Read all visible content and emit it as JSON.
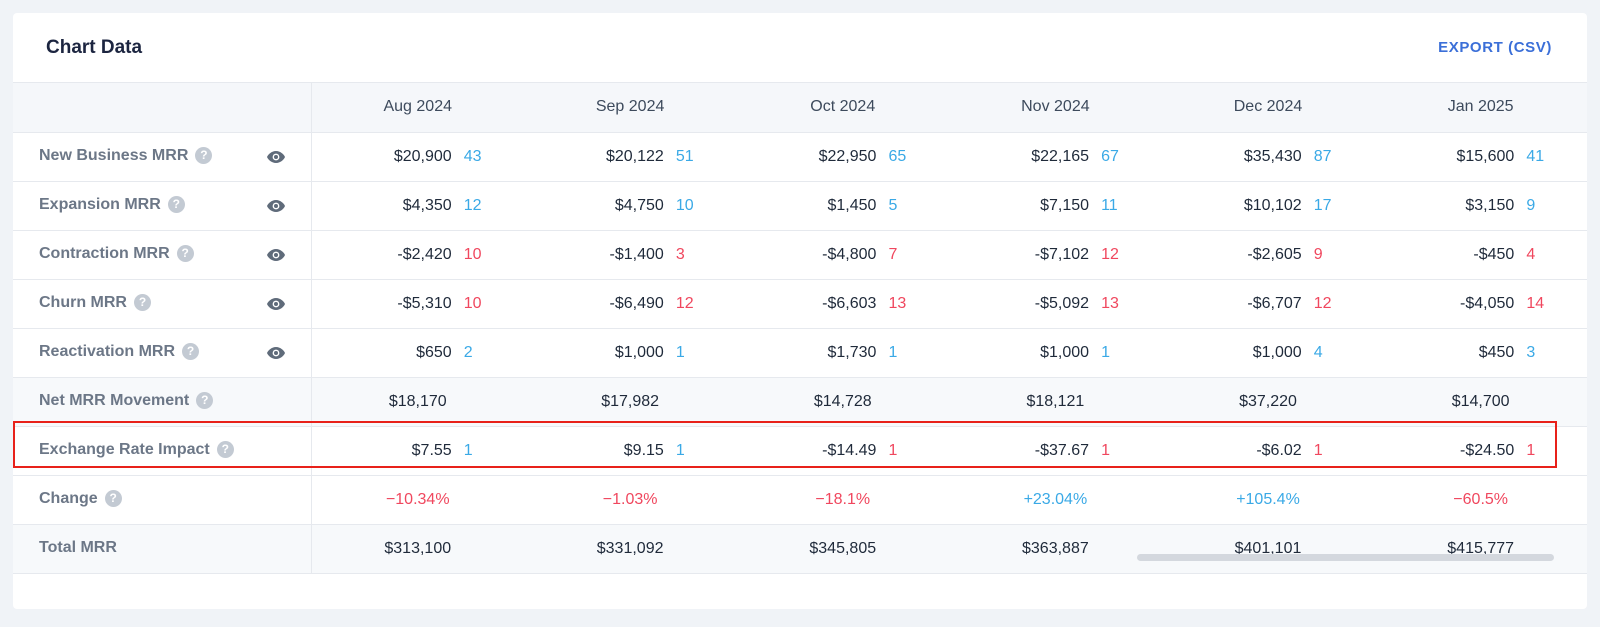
{
  "card": {
    "title": "Chart Data",
    "export_label": "EXPORT (CSV)"
  },
  "columns": [
    "Aug 2024",
    "Sep 2024",
    "Oct 2024",
    "Nov 2024",
    "Dec 2024",
    "Jan 2025"
  ],
  "rows": [
    {
      "label": "New Business MRR",
      "help_icon": "?",
      "has_eye": true,
      "cells": [
        {
          "amount": "$20,900",
          "count": "43",
          "tone": "pos"
        },
        {
          "amount": "$20,122",
          "count": "51",
          "tone": "pos"
        },
        {
          "amount": "$22,950",
          "count": "65",
          "tone": "pos"
        },
        {
          "amount": "$22,165",
          "count": "67",
          "tone": "pos"
        },
        {
          "amount": "$35,430",
          "count": "87",
          "tone": "pos"
        },
        {
          "amount": "$15,600",
          "count": "41",
          "tone": "pos"
        }
      ]
    },
    {
      "label": "Expansion MRR",
      "help_icon": "?",
      "has_eye": true,
      "cells": [
        {
          "amount": "$4,350",
          "count": "12",
          "tone": "pos"
        },
        {
          "amount": "$4,750",
          "count": "10",
          "tone": "pos"
        },
        {
          "amount": "$1,450",
          "count": "5",
          "tone": "pos"
        },
        {
          "amount": "$7,150",
          "count": "11",
          "tone": "pos"
        },
        {
          "amount": "$10,102",
          "count": "17",
          "tone": "pos"
        },
        {
          "amount": "$3,150",
          "count": "9",
          "tone": "pos"
        }
      ]
    },
    {
      "label": "Contraction MRR",
      "help_icon": "?",
      "has_eye": true,
      "cells": [
        {
          "amount": "-$2,420",
          "count": "10",
          "tone": "neg"
        },
        {
          "amount": "-$1,400",
          "count": "3",
          "tone": "neg"
        },
        {
          "amount": "-$4,800",
          "count": "7",
          "tone": "neg"
        },
        {
          "amount": "-$7,102",
          "count": "12",
          "tone": "neg"
        },
        {
          "amount": "-$2,605",
          "count": "9",
          "tone": "neg"
        },
        {
          "amount": "-$450",
          "count": "4",
          "tone": "neg"
        }
      ]
    },
    {
      "label": "Churn MRR",
      "help_icon": "?",
      "has_eye": true,
      "cells": [
        {
          "amount": "-$5,310",
          "count": "10",
          "tone": "neg"
        },
        {
          "amount": "-$6,490",
          "count": "12",
          "tone": "neg"
        },
        {
          "amount": "-$6,603",
          "count": "13",
          "tone": "neg"
        },
        {
          "amount": "-$5,092",
          "count": "13",
          "tone": "neg"
        },
        {
          "amount": "-$6,707",
          "count": "12",
          "tone": "neg"
        },
        {
          "amount": "-$4,050",
          "count": "14",
          "tone": "neg"
        }
      ]
    },
    {
      "label": "Reactivation MRR",
      "help_icon": "?",
      "has_eye": true,
      "cells": [
        {
          "amount": "$650",
          "count": "2",
          "tone": "pos"
        },
        {
          "amount": "$1,000",
          "count": "1",
          "tone": "pos"
        },
        {
          "amount": "$1,730",
          "count": "1",
          "tone": "pos"
        },
        {
          "amount": "$1,000",
          "count": "1",
          "tone": "pos"
        },
        {
          "amount": "$1,000",
          "count": "4",
          "tone": "pos"
        },
        {
          "amount": "$450",
          "count": "3",
          "tone": "pos"
        }
      ]
    }
  ],
  "net_row": {
    "label": "Net MRR Movement",
    "help_icon": "?",
    "values": [
      "$18,170",
      "$17,982",
      "$14,728",
      "$18,121",
      "$37,220",
      "$14,700"
    ]
  },
  "fx_row": {
    "label": "Exchange Rate Impact",
    "help_icon": "?",
    "cells": [
      {
        "amount": "$7.55",
        "count": "1",
        "tone": "pos"
      },
      {
        "amount": "$9.15",
        "count": "1",
        "tone": "pos"
      },
      {
        "amount": "-$14.49",
        "count": "1",
        "tone": "neg"
      },
      {
        "amount": "-$37.67",
        "count": "1",
        "tone": "neg"
      },
      {
        "amount": "-$6.02",
        "count": "1",
        "tone": "neg"
      },
      {
        "amount": "-$24.50",
        "count": "1",
        "tone": "neg"
      }
    ]
  },
  "change_row": {
    "label": "Change",
    "help_icon": "?",
    "values": [
      {
        "text": "−10.34%",
        "tone": "neg"
      },
      {
        "text": "−1.03%",
        "tone": "neg"
      },
      {
        "text": "−18.1%",
        "tone": "neg"
      },
      {
        "text": "+23.04%",
        "tone": "pos"
      },
      {
        "text": "+105.4%",
        "tone": "pos"
      },
      {
        "text": "−60.5%",
        "tone": "neg"
      }
    ]
  },
  "total_row": {
    "label": "Total MRR",
    "values": [
      "$313,100",
      "$331,092",
      "$345,805",
      "$363,887",
      "$401,101",
      "$415,777"
    ]
  },
  "colors": {
    "accent_link": "#3b6fd8",
    "positive": "#3aa9e6",
    "negative": "#f0475e",
    "highlight_border": "#e8211a"
  },
  "icons": {
    "help": "question-circle-icon",
    "visibility": "eye-icon"
  }
}
